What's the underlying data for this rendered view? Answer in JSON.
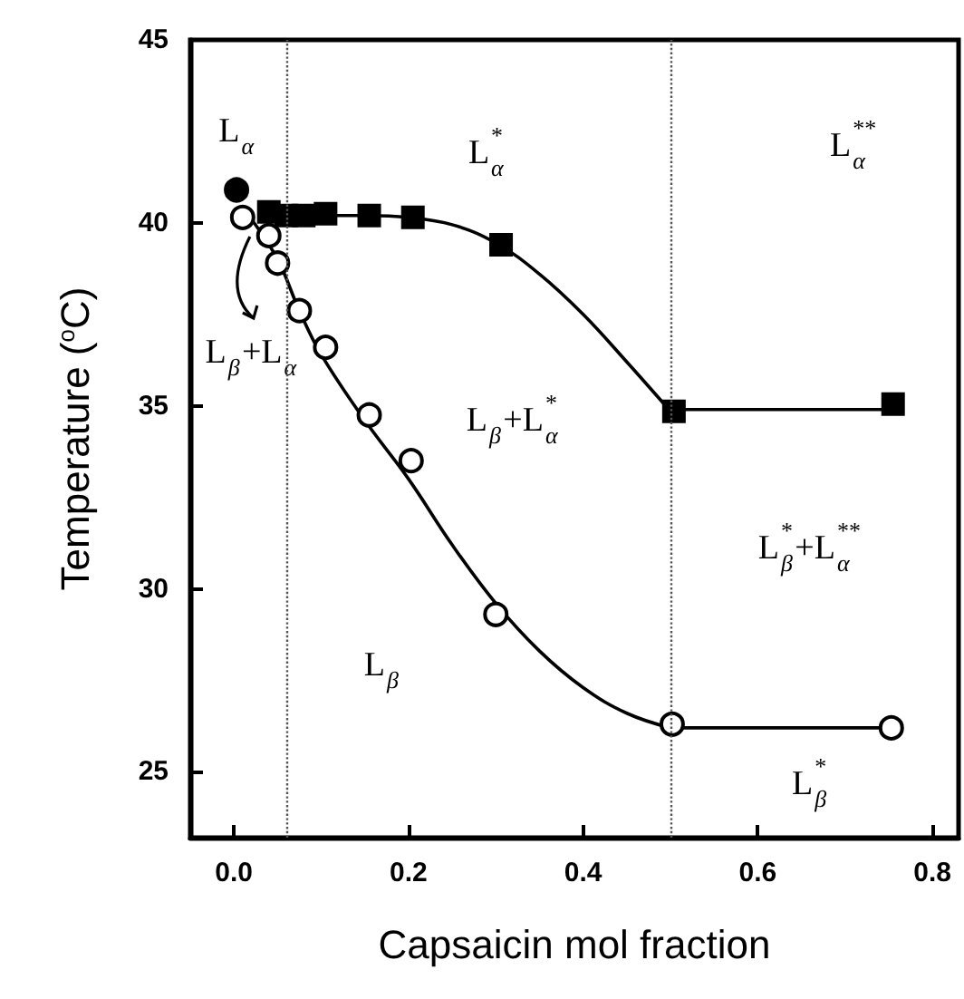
{
  "chart_data": {
    "type": "scatter",
    "xlabel": "Capsaicin mol fraction",
    "ylabel": "Temperature ($^{o}$C)",
    "xlim": [
      -0.05,
      0.83
    ],
    "ylim": [
      23.2,
      45
    ],
    "xticks": [
      {
        "value": 0,
        "label": "0.0"
      },
      {
        "value": 0.2,
        "label": "0.2"
      },
      {
        "value": 0.4,
        "label": "0.4"
      },
      {
        "value": 0.6,
        "label": "0.6"
      },
      {
        "value": 0.8,
        "label": "0.8"
      }
    ],
    "yticks": [
      25,
      30,
      35,
      40,
      45
    ],
    "grid": false,
    "series": [
      {
        "type": "line",
        "marker": "none",
        "color": "#000000",
        "x": [
          0.06,
          0.1,
          0.15,
          0.2,
          0.25,
          0.3,
          0.35,
          0.4,
          0.45,
          0.5
        ],
        "values": [
          40.2,
          40.2,
          40.2,
          40.15,
          39.95,
          39.45,
          38.6,
          37.5,
          36.2,
          34.85
        ]
      },
      {
        "type": "line",
        "marker": "none",
        "color": "#000000",
        "x": [
          0.5,
          0.75
        ],
        "values": [
          34.9,
          34.9
        ]
      },
      {
        "type": "line",
        "marker": "none",
        "color": "#000000",
        "x": [
          0.02,
          0.05,
          0.075,
          0.1,
          0.15,
          0.2,
          0.25,
          0.3,
          0.35,
          0.4,
          0.45,
          0.5
        ],
        "values": [
          40.1,
          39.0,
          37.6,
          36.4,
          34.6,
          33.0,
          31.2,
          29.6,
          28.3,
          27.3,
          26.6,
          26.2
        ]
      },
      {
        "type": "line",
        "marker": "none",
        "color": "#000000",
        "x": [
          0.5,
          0.75
        ],
        "values": [
          26.2,
          26.2
        ]
      },
      {
        "marker": "square",
        "color": "#000000",
        "x": [
          0.04,
          0.06,
          0.08,
          0.105,
          0.155,
          0.205,
          0.306,
          0.504,
          0.755
        ],
        "values": [
          40.3,
          40.2,
          40.2,
          40.25,
          40.2,
          40.15,
          39.4,
          34.85,
          35.05
        ]
      },
      {
        "marker": "circle",
        "color": "#ffffff",
        "x": [
          0.01,
          0.04,
          0.05,
          0.075,
          0.105,
          0.155,
          0.203,
          0.3,
          0.502,
          0.753
        ],
        "values": [
          40.15,
          39.65,
          38.9,
          37.6,
          36.6,
          34.75,
          33.5,
          29.3,
          26.3,
          26.2
        ]
      },
      {
        "marker": "circle",
        "color": "#000000",
        "x": [
          0.003
        ],
        "values": [
          40.9
        ]
      }
    ],
    "ref_lines": [
      {
        "axis": "x",
        "value": 0.06,
        "line_style": "dotted",
        "color": "#555555"
      },
      {
        "axis": "x",
        "value": 0.5,
        "line_style": "dotted",
        "color": "#555555"
      }
    ],
    "annotations": [
      "L$_{α}$",
      "L$^{*}$$_{α}$",
      "L$_{β}$+L$_{α}$",
      "L$_{β}$+L$^{*}$$_{α}$",
      "L$^{**}$$_{α}$",
      "L$^{*}$$_{β}$+L$^{**}$$_{α}$",
      "L$_{β}$",
      "L$^{*}$$_{β}$"
    ]
  }
}
